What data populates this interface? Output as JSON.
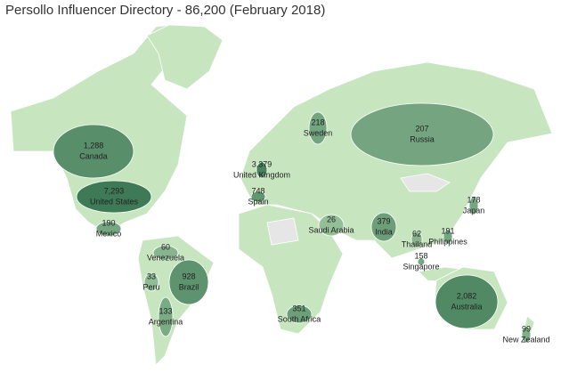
{
  "title": "Persollo Influencer Directory  - 86,200 (February 2018)",
  "countries": [
    {
      "name": "Canada",
      "value": 1288,
      "value_label": "1,288"
    },
    {
      "name": "United States",
      "value": 7293,
      "value_label": "7,293"
    },
    {
      "name": "Mexico",
      "value": 190,
      "value_label": "190"
    },
    {
      "name": "Venezuela",
      "value": 60,
      "value_label": "60"
    },
    {
      "name": "Peru",
      "value": 33,
      "value_label": "33"
    },
    {
      "name": "Brazil",
      "value": 928,
      "value_label": "928"
    },
    {
      "name": "Argentina",
      "value": 133,
      "value_label": "133"
    },
    {
      "name": "United Kingdom",
      "value": 3379,
      "value_label": "3,379"
    },
    {
      "name": "Spain",
      "value": 748,
      "value_label": "748"
    },
    {
      "name": "Sweden",
      "value": 218,
      "value_label": "218"
    },
    {
      "name": "Russia",
      "value": 207,
      "value_label": "207"
    },
    {
      "name": "Saudi Arabia",
      "value": 26,
      "value_label": "26"
    },
    {
      "name": "India",
      "value": 379,
      "value_label": "379"
    },
    {
      "name": "Thailand",
      "value": 62,
      "value_label": "62"
    },
    {
      "name": "Philippines",
      "value": 191,
      "value_label": "191"
    },
    {
      "name": "Japan",
      "value": 178,
      "value_label": "178"
    },
    {
      "name": "Singapore",
      "value": 158,
      "value_label": "158"
    },
    {
      "name": "South Africa",
      "value": 351,
      "value_label": "351"
    },
    {
      "name": "Australia",
      "value": 2082,
      "value_label": "2,082"
    },
    {
      "name": "New Zealand",
      "value": 99,
      "value_label": "99"
    }
  ]
}
